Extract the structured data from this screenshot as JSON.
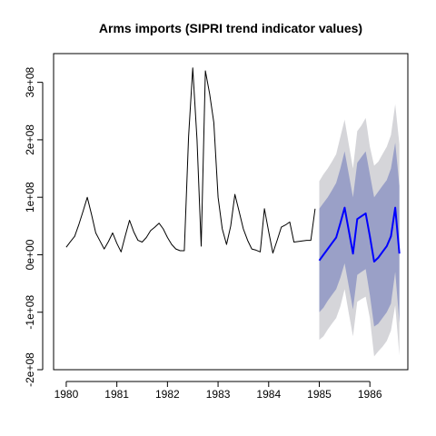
{
  "chart_data": {
    "type": "line",
    "title": "Arms imports (SIPRI trend indicator values)",
    "xlabel": "",
    "ylabel": "",
    "xlim": [
      1979.75,
      1986.75
    ],
    "ylim": [
      -200000000,
      350000000
    ],
    "x_ticks": [
      1980,
      1981,
      1982,
      1983,
      1984,
      1985,
      1986
    ],
    "x_tick_labels": [
      "1980",
      "1981",
      "1982",
      "1983",
      "1984",
      "1985",
      "1986"
    ],
    "y_ticks": [
      -200000000,
      -100000000,
      0,
      100000000,
      200000000,
      300000000
    ],
    "y_tick_labels": [
      "-2e+08",
      "-1e+08",
      "0e+00",
      "1e+08",
      "2e+08",
      "3e+08"
    ],
    "frequency": 12,
    "start": 1980,
    "series": [
      {
        "role": "observed",
        "color": "#000000",
        "x": [
          1980.0,
          1980.0833,
          1980.1667,
          1980.25,
          1980.3333,
          1980.4167,
          1980.5,
          1980.5833,
          1980.6667,
          1980.75,
          1980.8333,
          1980.9167,
          1981.0,
          1981.0833,
          1981.1667,
          1981.25,
          1981.3333,
          1981.4167,
          1981.5,
          1981.5833,
          1981.6667,
          1981.75,
          1981.8333,
          1981.9167,
          1982.0,
          1982.0833,
          1982.1667,
          1982.25,
          1982.3333,
          1982.4167,
          1982.5,
          1982.5833,
          1982.6667,
          1982.75,
          1982.8333,
          1982.9167,
          1983.0,
          1983.0833,
          1983.1667,
          1983.25,
          1983.3333,
          1983.4167,
          1983.5,
          1983.5833,
          1983.6667,
          1983.75,
          1983.8333,
          1983.9167,
          1984.0,
          1984.0833,
          1984.1667,
          1984.25,
          1984.3333,
          1984.4167,
          1984.5,
          1984.5833,
          1984.6667,
          1984.75,
          1984.8333,
          1984.9167
        ],
        "values": [
          13000000,
          23000000,
          32000000,
          53000000,
          76000000,
          100000000,
          70000000,
          38000000,
          24000000,
          10000000,
          23000000,
          38000000,
          20000000,
          5000000,
          33000000,
          60000000,
          40000000,
          25000000,
          22000000,
          30000000,
          42000000,
          48000000,
          55000000,
          45000000,
          30000000,
          18000000,
          10000000,
          7000000,
          7000000,
          205000000,
          325000000,
          200000000,
          15000000,
          320000000,
          280000000,
          230000000,
          100000000,
          45000000,
          18000000,
          50000000,
          105000000,
          75000000,
          45000000,
          25000000,
          10000000,
          8000000,
          5000000,
          80000000,
          40000000,
          3000000,
          25000000,
          48000000,
          52000000,
          57000000,
          22000000,
          23000000,
          24000000,
          25000000,
          25000000,
          80000000
        ]
      },
      {
        "role": "forecast",
        "color": "#0000ff",
        "x": [
          1985.0,
          1985.0833,
          1985.1667,
          1985.25,
          1985.3333,
          1985.4167,
          1985.5,
          1985.5833,
          1985.6667,
          1985.75,
          1985.8333,
          1985.9167,
          1986.0,
          1986.0833,
          1986.1667,
          1986.25,
          1986.3333,
          1986.4167,
          1986.5,
          1986.5833
        ],
        "values": [
          -10000000,
          0,
          10000000,
          20000000,
          30000000,
          55000000,
          82000000,
          42000000,
          2000000,
          62000000,
          67000000,
          72000000,
          32000000,
          -12000000,
          -5000000,
          5000000,
          15000000,
          32000000,
          82000000,
          2000000
        ],
        "band_95": {
          "color": "#d5d5d9",
          "upper": [
            128000000,
            140000000,
            150000000,
            162000000,
            175000000,
            205000000,
            235000000,
            192000000,
            150000000,
            215000000,
            225000000,
            238000000,
            188000000,
            155000000,
            162000000,
            175000000,
            188000000,
            208000000,
            262000000,
            192000000
          ],
          "lower": [
            -148000000,
            -142000000,
            -130000000,
            -120000000,
            -110000000,
            -90000000,
            -60000000,
            -102000000,
            -142000000,
            -82000000,
            -77000000,
            -73000000,
            -110000000,
            -177000000,
            -168000000,
            -160000000,
            -150000000,
            -132000000,
            -88000000,
            -175000000
          ]
        },
        "band_80": {
          "color": "#9aa0c7",
          "upper": [
            80000000,
            90000000,
            100000000,
            112000000,
            125000000,
            150000000,
            180000000,
            140000000,
            100000000,
            160000000,
            170000000,
            180000000,
            140000000,
            100000000,
            110000000,
            120000000,
            130000000,
            150000000,
            195000000,
            120000000
          ],
          "lower": [
            -100000000,
            -92000000,
            -80000000,
            -70000000,
            -60000000,
            -40000000,
            -15000000,
            -55000000,
            -95000000,
            -35000000,
            -30000000,
            -25000000,
            -70000000,
            -125000000,
            -120000000,
            -110000000,
            -100000000,
            -85000000,
            -30000000,
            -118000000
          ]
        }
      }
    ],
    "grid": false,
    "legend": "none"
  }
}
